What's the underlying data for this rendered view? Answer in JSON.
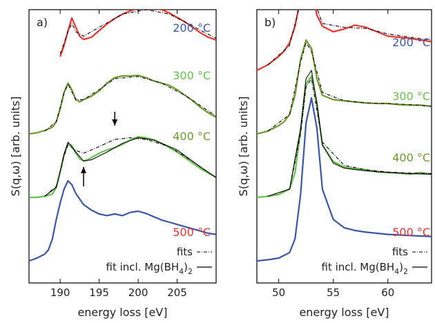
{
  "chart_data": [
    {
      "type": "line",
      "panel_label": "a)",
      "xlabel": "energy loss [eV]",
      "ylabel": "S(q,ω) [arb. units]",
      "xlim": [
        186,
        210
      ],
      "x_ticks": [
        190,
        195,
        200,
        205
      ],
      "y_ticks": "none",
      "legend": {
        "position": "bottom-right",
        "dashed": "fits",
        "solid_prefix": "fit incl. Mg(BH",
        "solid_sub1": "4",
        "solid_mid": ")",
        "solid_sub2": "2"
      },
      "series": [
        {
          "name": "500 °C",
          "color": "#e8332f",
          "kind": "data",
          "offset": 3,
          "x": [
            190,
            190.5,
            191,
            191.5,
            192,
            192.5,
            193,
            194,
            195,
            196,
            197,
            198,
            199,
            200,
            201,
            202,
            203,
            204,
            205,
            206,
            207,
            208,
            209,
            210
          ],
          "y": [
            0.25,
            0.45,
            0.72,
            0.95,
            0.78,
            0.62,
            0.56,
            0.6,
            0.72,
            0.84,
            0.94,
            1.02,
            1.08,
            1.12,
            1.1,
            1.12,
            1.1,
            1.04,
            0.96,
            0.88,
            0.78,
            0.68,
            0.6,
            0.55
          ]
        },
        {
          "name": "400 °C",
          "color": "#6f9a2e",
          "kind": "data",
          "offset": 2,
          "x": [
            186,
            187,
            188,
            189,
            189.5,
            190,
            190.5,
            191,
            191.5,
            192,
            192.5,
            193,
            194,
            195,
            196,
            197,
            198,
            199,
            200,
            201,
            202,
            203,
            204,
            205,
            206,
            207,
            208,
            209,
            210
          ],
          "y": [
            0.0,
            0.02,
            0.06,
            0.12,
            0.22,
            0.45,
            0.75,
            0.92,
            0.8,
            0.62,
            0.58,
            0.62,
            0.68,
            0.78,
            0.92,
            1.02,
            1.05,
            1.05,
            1.06,
            1.02,
            0.96,
            0.92,
            0.88,
            0.8,
            0.7,
            0.6,
            0.48,
            0.38,
            0.3
          ]
        },
        {
          "name": "300 °C",
          "color": "#66c24a",
          "kind": "data",
          "offset": 1,
          "x": [
            186,
            187,
            188,
            189,
            189.5,
            190,
            190.5,
            191,
            191.5,
            192,
            192.5,
            193,
            193.5,
            194,
            195,
            196,
            197,
            198,
            199,
            200,
            201,
            202,
            203,
            204,
            205,
            206,
            207,
            208,
            209,
            210
          ],
          "y": [
            0.0,
            0.0,
            0.02,
            0.06,
            0.18,
            0.45,
            0.78,
            0.98,
            0.94,
            0.8,
            0.7,
            0.66,
            0.68,
            0.72,
            0.8,
            0.86,
            0.9,
            0.96,
            1.04,
            1.1,
            1.08,
            1.04,
            0.98,
            0.9,
            0.82,
            0.72,
            0.62,
            0.52,
            0.44,
            0.36
          ]
        },
        {
          "name": "200 °C",
          "color": "#3a56a6",
          "kind": "data",
          "offset": 0,
          "x": [
            186,
            187,
            188,
            188.5,
            189,
            189.5,
            190,
            190.5,
            191,
            191.5,
            192,
            193,
            194,
            195,
            196,
            197,
            198,
            199,
            200,
            201,
            202,
            203,
            204,
            205,
            206,
            207,
            208,
            209,
            210
          ],
          "y": [
            0.0,
            0.05,
            0.12,
            0.2,
            0.4,
            0.75,
            1.05,
            1.3,
            1.45,
            1.38,
            1.22,
            1.02,
            0.92,
            0.85,
            0.82,
            0.85,
            0.82,
            0.88,
            0.9,
            0.86,
            0.8,
            0.74,
            0.7,
            0.66,
            0.62,
            0.58,
            0.54,
            0.5,
            0.48
          ]
        }
      ],
      "fits": [
        {
          "kind": "fit",
          "offset": 3,
          "style": "dashed",
          "x": [
            190,
            191,
            191.5,
            192,
            193,
            195,
            198,
            201,
            204,
            207,
            210
          ],
          "y": [
            0.3,
            0.7,
            0.85,
            0.7,
            0.62,
            0.78,
            1.02,
            1.1,
            1.02,
            0.8,
            0.58
          ]
        },
        {
          "kind": "fit",
          "offset": 2,
          "style": "dashed",
          "x": [
            188,
            189.5,
            190.5,
            191,
            192,
            193,
            195,
            197,
            200,
            203,
            206,
            210
          ],
          "y": [
            0.05,
            0.22,
            0.75,
            0.9,
            0.62,
            0.62,
            0.8,
            1.0,
            1.04,
            0.92,
            0.7,
            0.32
          ]
        },
        {
          "kind": "fit",
          "offset": 1,
          "style": "dashed",
          "x": [
            188,
            189.5,
            190.5,
            191,
            192,
            193,
            195,
            197,
            199,
            201,
            204,
            207,
            210
          ],
          "y": [
            0.02,
            0.2,
            0.75,
            0.95,
            0.85,
            0.8,
            0.92,
            1.05,
            1.08,
            1.05,
            0.92,
            0.65,
            0.36
          ]
        },
        {
          "kind": "fit",
          "offset": 1,
          "style": "solid",
          "x": [
            188,
            189.5,
            190.5,
            191,
            192,
            193,
            194,
            196,
            198,
            200,
            202,
            205,
            208,
            210
          ],
          "y": [
            0.02,
            0.18,
            0.78,
            1.0,
            0.82,
            0.66,
            0.68,
            0.82,
            0.98,
            1.08,
            1.04,
            0.86,
            0.55,
            0.36
          ]
        }
      ],
      "annotations": [
        {
          "type": "arrow",
          "direction": "down",
          "x": 197,
          "y_from": 1.55,
          "y_to": 1.3
        },
        {
          "type": "arrow",
          "direction": "up",
          "x": 193,
          "y_from": 0.2,
          "y_to": 0.55
        }
      ]
    },
    {
      "type": "line",
      "panel_label": "b)",
      "xlabel": "energy loss [eV]",
      "ylabel": "S(q,ω) [arb. units]",
      "xlim": [
        48,
        64
      ],
      "x_ticks": [
        50,
        55,
        60
      ],
      "y_ticks": "none",
      "legend": {
        "position": "bottom-right",
        "dashed": "fits",
        "solid_prefix": "fit incl. Mg(BH",
        "solid_sub1": "4",
        "solid_mid": ")",
        "solid_sub2": "2"
      },
      "series": [
        {
          "name": "500 °C",
          "color": "#e8332f",
          "kind": "data",
          "offset": 3,
          "x": [
            48,
            49,
            50,
            50.5,
            51,
            51.5,
            52,
            52.5,
            53,
            53.5,
            54,
            55,
            56,
            57,
            58,
            59,
            60,
            61,
            62,
            63,
            64
          ],
          "y": [
            0.0,
            0.1,
            0.25,
            0.35,
            0.5,
            0.8,
            1.3,
            1.6,
            1.45,
            1.0,
            0.8,
            0.7,
            0.75,
            0.82,
            0.78,
            0.7,
            0.62,
            0.6,
            0.58,
            0.55,
            0.52
          ]
        },
        {
          "name": "400 °C",
          "color": "#6f9a2e",
          "kind": "data",
          "offset": 2,
          "x": [
            48,
            49,
            50,
            50.5,
            51,
            51.5,
            52,
            52.5,
            53,
            53.5,
            54,
            55,
            56,
            57,
            58,
            59,
            60,
            61,
            62,
            63,
            64
          ],
          "y": [
            0.0,
            0.05,
            0.15,
            0.22,
            0.35,
            0.7,
            1.35,
            1.7,
            1.55,
            1.0,
            0.7,
            0.62,
            0.6,
            0.58,
            0.56,
            0.55,
            0.55,
            0.53,
            0.52,
            0.52,
            0.5
          ]
        },
        {
          "name": "300 °C",
          "color": "#66c24a",
          "kind": "data",
          "offset": 1,
          "x": [
            48,
            49,
            50,
            51,
            51.5,
            52,
            52.5,
            53,
            53.5,
            54,
            55,
            56,
            57,
            58,
            59,
            60,
            61,
            62,
            63,
            64
          ],
          "y": [
            0.0,
            0.02,
            0.05,
            0.15,
            0.45,
            1.2,
            2.05,
            2.2,
            1.7,
            0.95,
            0.65,
            0.55,
            0.52,
            0.5,
            0.46,
            0.45,
            0.44,
            0.42,
            0.45,
            0.42
          ]
        },
        {
          "name": "200 °C",
          "color": "#3a56a6",
          "kind": "data",
          "offset": 0,
          "x": [
            48,
            49,
            50,
            51,
            51.5,
            52,
            52.5,
            53,
            53.5,
            54,
            55,
            56,
            57,
            58,
            59,
            60,
            61,
            62,
            63,
            64
          ],
          "y": [
            0.0,
            0.02,
            0.05,
            0.15,
            0.4,
            1.2,
            2.5,
            2.95,
            2.4,
            1.3,
            0.75,
            0.6,
            0.55,
            0.52,
            0.5,
            0.48,
            0.47,
            0.46,
            0.45,
            0.44
          ]
        }
      ],
      "fits": [
        {
          "kind": "fit",
          "offset": 3,
          "style": "dashed",
          "x": [
            49,
            51,
            52,
            52.5,
            53,
            54,
            56,
            58,
            60,
            62,
            64
          ],
          "y": [
            0.1,
            0.45,
            1.25,
            1.52,
            1.4,
            0.85,
            0.78,
            0.76,
            0.66,
            0.6,
            0.55
          ]
        },
        {
          "kind": "fit",
          "offset": 2,
          "style": "dashed",
          "x": [
            49,
            51,
            52,
            52.5,
            53,
            54,
            56,
            58,
            60,
            62,
            64
          ],
          "y": [
            0.05,
            0.35,
            1.3,
            1.65,
            1.5,
            0.75,
            0.6,
            0.56,
            0.55,
            0.53,
            0.5
          ]
        },
        {
          "kind": "fit",
          "offset": 1,
          "style": "dashed",
          "x": [
            49,
            51,
            52,
            52.5,
            53,
            54,
            56,
            58,
            60,
            62,
            64
          ],
          "y": [
            0.02,
            0.15,
            1.15,
            2.0,
            2.15,
            1.0,
            0.58,
            0.5,
            0.46,
            0.44,
            0.43
          ]
        },
        {
          "kind": "fit",
          "offset": 1,
          "style": "solid",
          "x": [
            49,
            51,
            52,
            52.5,
            53,
            53.5,
            54,
            55,
            56,
            58,
            60,
            62,
            64
          ],
          "y": [
            0.02,
            0.15,
            1.25,
            2.15,
            2.3,
            1.7,
            0.95,
            0.62,
            0.53,
            0.48,
            0.45,
            0.43,
            0.42
          ]
        }
      ],
      "annotations": []
    }
  ],
  "style": {
    "fit_color": "#000000",
    "axis_color": "#000000",
    "label_colors": {
      "500 °C": "#e8332f",
      "400 °C": "#6f9a2e",
      "300 °C": "#66c24a",
      "200 °C": "#3a56a6"
    }
  }
}
